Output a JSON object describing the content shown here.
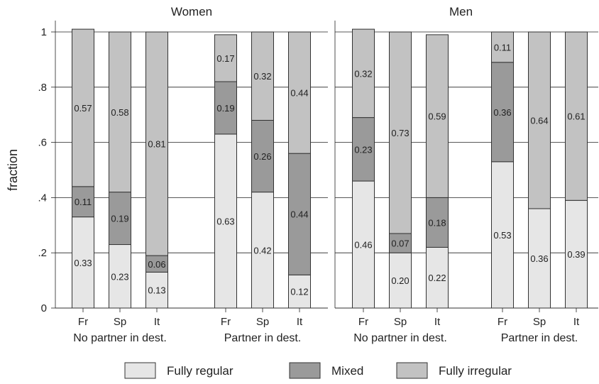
{
  "chart_data": {
    "type": "bar",
    "stacked": true,
    "ylabel": "fraction",
    "ylim": [
      0,
      1
    ],
    "yticks": [
      {
        "value": 0,
        "label": "0"
      },
      {
        "value": 0.2,
        "label": ".2"
      },
      {
        "value": 0.4,
        "label": ".4"
      },
      {
        "value": 0.6,
        "label": ".6"
      },
      {
        "value": 0.8,
        "label": ".8"
      },
      {
        "value": 1,
        "label": "1"
      }
    ],
    "grid": true,
    "legend_position": "bottom",
    "legend": [
      {
        "name": "Fully regular",
        "color": "#e6e6e6"
      },
      {
        "name": "Mixed",
        "color": "#9a9a9a"
      },
      {
        "name": "Fully irregular",
        "color": "#c2c2c2"
      }
    ],
    "panels": [
      {
        "title": "Women",
        "groups": [
          {
            "label": "No partner in dest.",
            "bars": [
              {
                "category": "Fr",
                "values": [
                  0.33,
                  0.11,
                  0.57
                ],
                "labels": [
                  "0.33",
                  "0.11",
                  "0.57"
                ]
              },
              {
                "category": "Sp",
                "values": [
                  0.23,
                  0.19,
                  0.58
                ],
                "labels": [
                  "0.23",
                  "0.19",
                  "0.58"
                ]
              },
              {
                "category": "It",
                "values": [
                  0.13,
                  0.06,
                  0.81
                ],
                "labels": [
                  "0.13",
                  "0.06",
                  "0.81"
                ]
              }
            ]
          },
          {
            "label": "Partner in dest.",
            "bars": [
              {
                "category": "Fr",
                "values": [
                  0.63,
                  0.19,
                  0.17
                ],
                "labels": [
                  "0.63",
                  "0.19",
                  "0.17"
                ]
              },
              {
                "category": "Sp",
                "values": [
                  0.42,
                  0.26,
                  0.32
                ],
                "labels": [
                  "0.42",
                  "0.26",
                  "0.32"
                ]
              },
              {
                "category": "It",
                "values": [
                  0.12,
                  0.44,
                  0.44
                ],
                "labels": [
                  "0.12",
                  "0.44",
                  "0.44"
                ]
              }
            ]
          }
        ]
      },
      {
        "title": "Men",
        "groups": [
          {
            "label": "No partner in dest.",
            "bars": [
              {
                "category": "Fr",
                "values": [
                  0.46,
                  0.23,
                  0.32
                ],
                "labels": [
                  "0.46",
                  "0.23",
                  "0.32"
                ]
              },
              {
                "category": "Sp",
                "values": [
                  0.2,
                  0.07,
                  0.73
                ],
                "labels": [
                  "0.20",
                  "0.07",
                  "0.73"
                ]
              },
              {
                "category": "It",
                "values": [
                  0.22,
                  0.18,
                  0.59
                ],
                "labels": [
                  "0.22",
                  "0.18",
                  "0.59"
                ]
              }
            ]
          },
          {
            "label": "Partner in dest.",
            "bars": [
              {
                "category": "Fr",
                "values": [
                  0.53,
                  0.36,
                  0.11
                ],
                "labels": [
                  "0.53",
                  "0.36",
                  "0.11"
                ]
              },
              {
                "category": "Sp",
                "values": [
                  0.36,
                  0.0,
                  0.64
                ],
                "labels": [
                  "0.36",
                  "",
                  "0.64"
                ]
              },
              {
                "category": "It",
                "values": [
                  0.39,
                  0.0,
                  0.61
                ],
                "labels": [
                  "0.39",
                  "",
                  "0.61"
                ]
              }
            ]
          }
        ]
      }
    ]
  }
}
